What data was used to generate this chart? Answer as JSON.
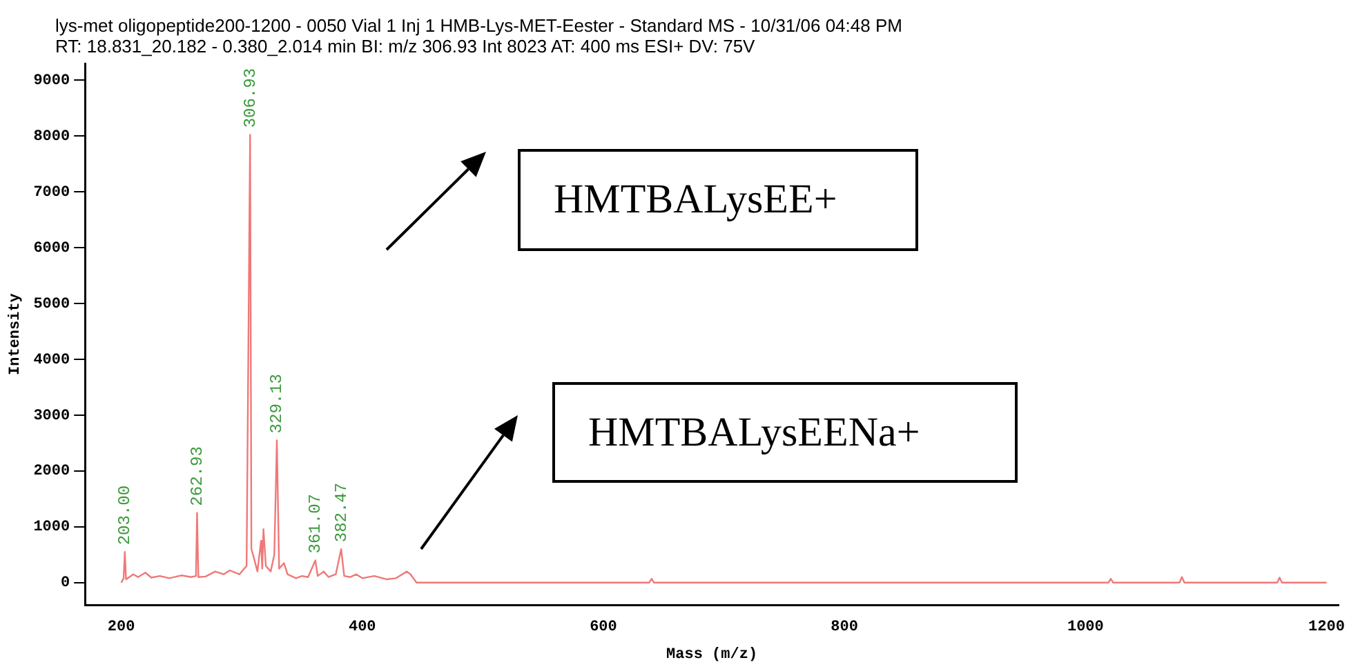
{
  "chart_data": {
    "type": "line",
    "title": "lys-met oligopeptide200-1200 - 0050 Vial 1 Inj 1 HMB-Lys-MET-Eester - Standard MS - 10/31/06 04:48 PM",
    "subtitle": "RT: 18.831_20.182 - 0.380_2.014 min  BI: m/z 306.93 Int 8023  AT: 400 ms  ESI+  DV: 75V",
    "xlabel": "Mass (m/z)",
    "ylabel": "Intensity",
    "x": [
      200,
      202,
      203,
      204,
      210,
      214,
      220,
      225,
      232,
      240,
      250,
      258,
      262,
      262.93,
      264,
      270,
      278,
      285,
      290,
      298,
      304,
      306.93,
      308,
      310,
      313,
      316,
      317,
      318,
      320,
      324,
      327,
      329.13,
      331,
      335,
      338,
      345,
      350,
      355,
      361.07,
      363,
      368,
      372,
      378,
      382.47,
      385,
      390,
      395,
      400,
      410,
      420,
      428,
      437,
      440,
      445,
      638,
      640,
      642,
      1019,
      1021,
      1023,
      1078,
      1080,
      1082,
      1159,
      1161,
      1163,
      1200
    ],
    "series": [
      {
        "color": "#f07878",
        "values": [
          0,
          80,
          550,
          60,
          150,
          100,
          180,
          90,
          120,
          80,
          130,
          100,
          120,
          1250,
          100,
          110,
          200,
          150,
          220,
          150,
          300,
          8023,
          600,
          450,
          200,
          750,
          250,
          960,
          300,
          200,
          500,
          2550,
          250,
          350,
          150,
          80,
          120,
          100,
          400,
          120,
          200,
          100,
          150,
          600,
          120,
          100,
          150,
          80,
          120,
          60,
          80,
          200,
          150,
          0,
          0,
          70,
          0,
          0,
          70,
          0,
          0,
          100,
          0,
          0,
          90,
          0,
          0
        ]
      }
    ],
    "xlim": [
      170,
      1210
    ],
    "xticks": [
      200,
      400,
      600,
      800,
      1000,
      1200
    ],
    "ylim": [
      -400,
      9300
    ],
    "yticks": [
      0,
      1000,
      2000,
      3000,
      4000,
      5000,
      6000,
      7000,
      8000,
      9000
    ],
    "grid": false,
    "legend": false,
    "marker": "none",
    "line_style": "solid",
    "annotations": [
      {
        "text": "203.00",
        "x": 203,
        "y": 550
      },
      {
        "text": "262.93",
        "x": 262.93,
        "y": 1250
      },
      {
        "text": "306.93",
        "x": 306.93,
        "y": 8023
      },
      {
        "text": "329.13",
        "x": 329.13,
        "y": 2550
      },
      {
        "text": "361.07",
        "x": 361.07,
        "y": 400
      },
      {
        "text": "382.47",
        "x": 382.47,
        "y": 600
      },
      "HMTBALysEE+",
      "HMTBALysEENa+"
    ]
  }
}
